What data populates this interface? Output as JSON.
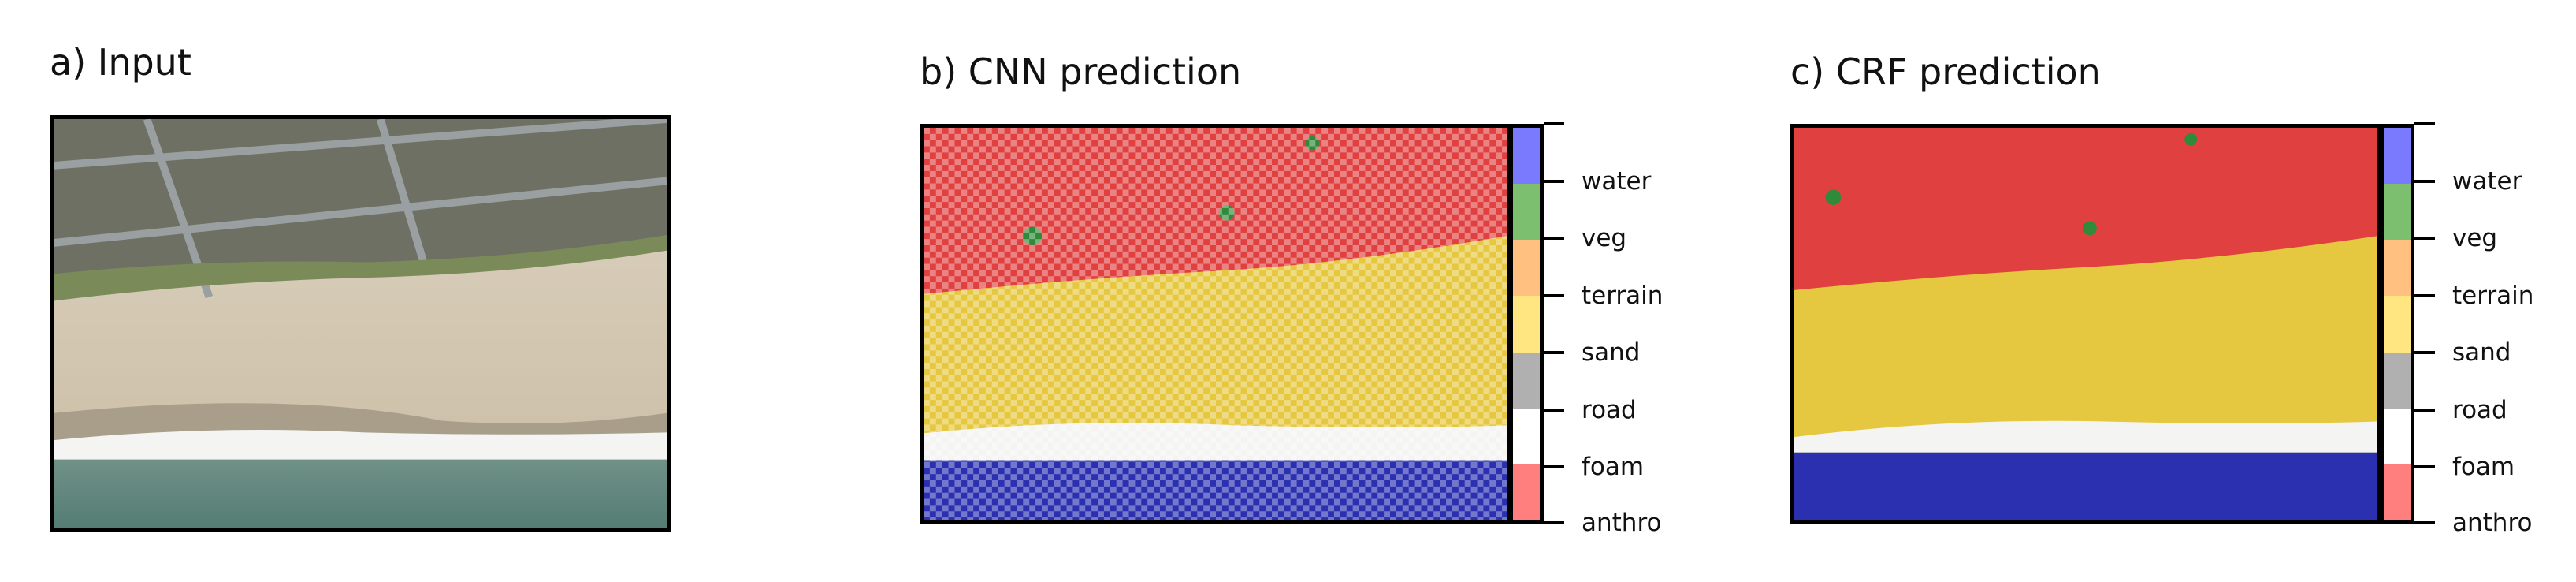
{
  "panels": [
    {
      "title": "a) Input"
    },
    {
      "title": "b) CNN prediction"
    },
    {
      "title": "c) CRF prediction"
    }
  ],
  "colorbar": {
    "classes": [
      {
        "label": "water",
        "color": "#7a7aff"
      },
      {
        "label": "veg",
        "color": "#7bbf6f"
      },
      {
        "label": "terrain",
        "color": "#ffc080"
      },
      {
        "label": "sand",
        "color": "#ffe680"
      },
      {
        "label": "road",
        "color": "#b0b0b0"
      },
      {
        "label": "foam",
        "color": "#ffffff"
      },
      {
        "label": "anthro",
        "color": "#ff7f7f"
      }
    ]
  },
  "colors": {
    "anthro_overlay": "#e04040",
    "sand_overlay": "#e6c840",
    "water_overlay": "#2a30b0",
    "veg_overlay": "#2f8a3a",
    "photo_sand": "#d8cdb8",
    "photo_ocean": "#5f8a80"
  }
}
